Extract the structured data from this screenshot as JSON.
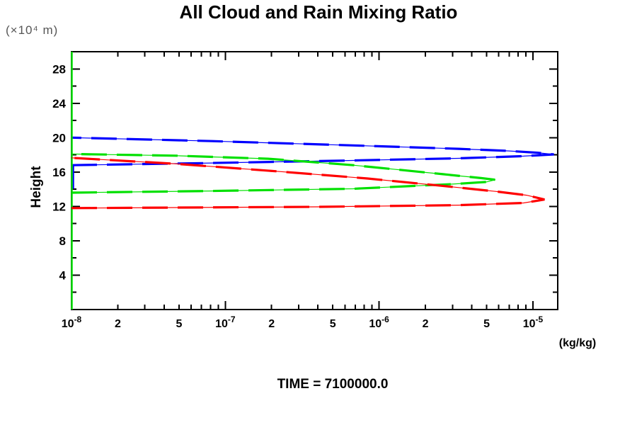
{
  "title": "All Cloud and Rain Mixing Ratio",
  "caption": "TIME = 7100000.0",
  "chart_data": {
    "type": "line",
    "title": "All Cloud and Rain Mixing Ratio",
    "xlabel": "(kg/kg)",
    "ylabel": "Height",
    "y_unit_label": "(×10⁴ m)",
    "x_scale": "log",
    "x_range": [
      1e-08,
      1.45e-05
    ],
    "y_range": [
      0,
      30
    ],
    "grid": "off",
    "legend": "none",
    "x_major_ticks": [
      {
        "value": 1e-08,
        "label": "10",
        "exp": "-8"
      },
      {
        "value": 1e-07,
        "label": "10",
        "exp": "-7"
      },
      {
        "value": 1e-06,
        "label": "10",
        "exp": "-6"
      },
      {
        "value": 1e-05,
        "label": "10",
        "exp": "-5"
      }
    ],
    "x_minor_labeled_ticks": [
      {
        "value": 2e-08,
        "label": "2"
      },
      {
        "value": 5e-08,
        "label": "5"
      },
      {
        "value": 2e-07,
        "label": "2"
      },
      {
        "value": 5e-07,
        "label": "5"
      },
      {
        "value": 2e-06,
        "label": "2"
      },
      {
        "value": 5e-06,
        "label": "5"
      }
    ],
    "x_minor_ticks": [
      3e-08,
      4e-08,
      6e-08,
      7e-08,
      8e-08,
      9e-08,
      3e-07,
      4e-07,
      6e-07,
      7e-07,
      8e-07,
      9e-07,
      3e-06,
      4e-06,
      6e-06,
      7e-06,
      8e-06,
      9e-06
    ],
    "y_major_ticks": [
      4,
      8,
      12,
      16,
      20,
      24,
      28
    ],
    "y_minor_ticks": [
      2,
      6,
      10,
      14,
      18,
      22,
      26
    ],
    "series": [
      {
        "name": "blue-profile",
        "color": "#0000ff",
        "axis_clip_segment": [
          14.05,
          16.8
        ],
        "points": [
          [
            1e-08,
            16.8
          ],
          [
            8.2e-08,
            17.05
          ],
          [
            6.8e-07,
            17.35
          ],
          [
            3.3e-06,
            17.6
          ],
          [
            8.7e-06,
            17.85
          ],
          [
            1.37e-05,
            18.05
          ],
          [
            1.07e-05,
            18.25
          ],
          [
            7e-06,
            18.45
          ],
          [
            3.3e-06,
            18.7
          ],
          [
            6.8e-07,
            19.1
          ],
          [
            8.2e-08,
            19.6
          ],
          [
            1e-08,
            20.0
          ]
        ]
      },
      {
        "name": "green-profile",
        "color": "#00e000",
        "axis_clip_segment": [
          0,
          30
        ],
        "points": [
          [
            1e-08,
            13.6
          ],
          [
            8.2e-08,
            13.8
          ],
          [
            6.8e-07,
            14.05
          ],
          [
            3e-06,
            14.6
          ],
          [
            5e-06,
            14.85
          ],
          [
            5.7e-06,
            15.1
          ],
          [
            4.6e-06,
            15.3
          ],
          [
            2.6e-06,
            15.75
          ],
          [
            6.8e-07,
            16.8
          ],
          [
            1.9e-07,
            17.55
          ],
          [
            4.8e-08,
            17.9
          ],
          [
            1e-08,
            18.1
          ]
        ]
      },
      {
        "name": "red-profile",
        "color": "#ff0000",
        "points": [
          [
            1e-08,
            11.8
          ],
          [
            4e-07,
            11.95
          ],
          [
            3.3e-06,
            12.15
          ],
          [
            8.7e-06,
            12.4
          ],
          [
            1.19e-05,
            12.8
          ],
          [
            9.1e-06,
            13.3
          ],
          [
            5.7e-06,
            13.75
          ],
          [
            2.4e-06,
            14.45
          ],
          [
            8.4e-07,
            15.25
          ],
          [
            2.3e-07,
            16.05
          ],
          [
            4.8e-08,
            16.95
          ],
          [
            1e-08,
            17.65
          ]
        ]
      }
    ]
  }
}
